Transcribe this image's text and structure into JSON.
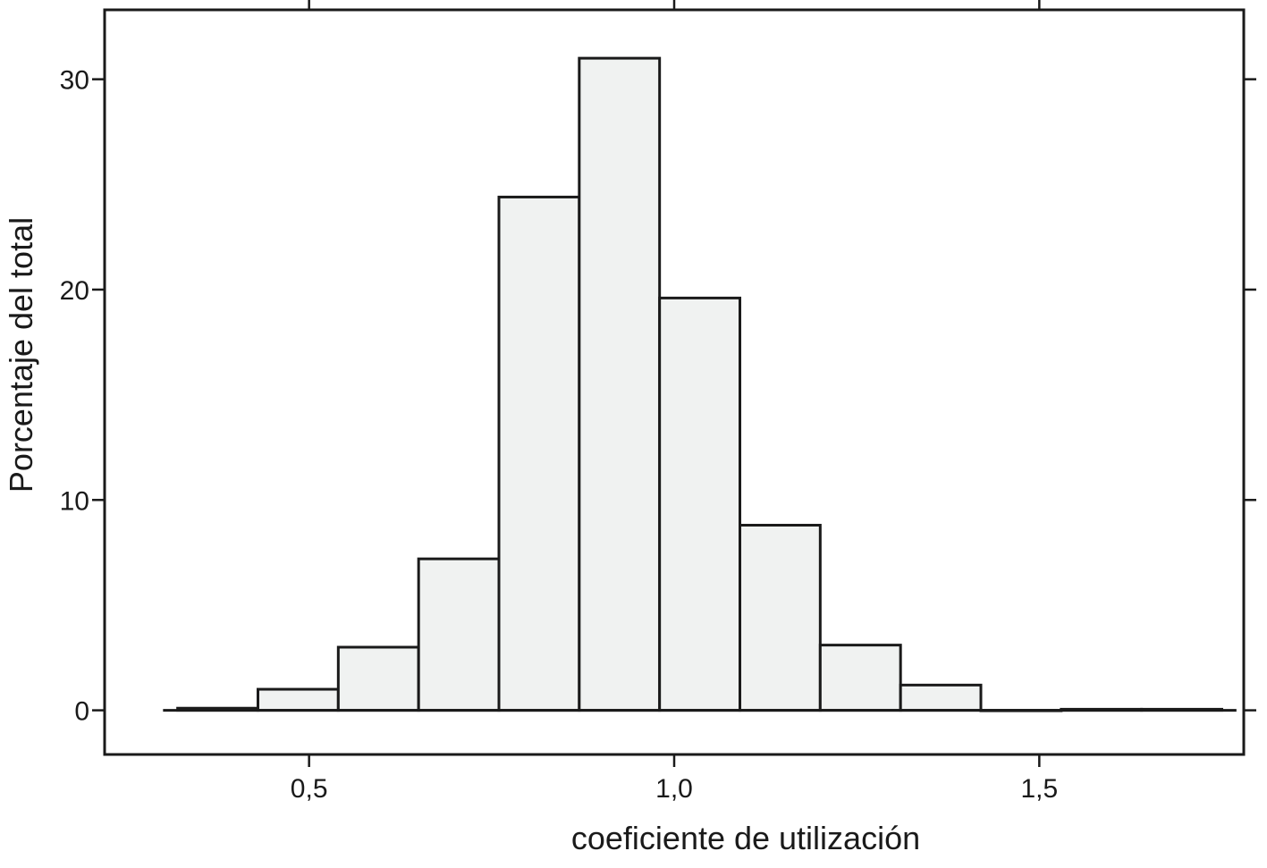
{
  "chart_data": {
    "type": "bar",
    "subtype": "histogram",
    "title": "",
    "xlabel": "coeficiente de utilización",
    "ylabel": "Porcentaje del total",
    "xlim": [
      0.22,
      1.78
    ],
    "ylim": [
      -2.1,
      33.3
    ],
    "bar_color": "#f0f2f1",
    "edge_color": "#1a1a1a",
    "x_ticks": [
      {
        "value": 0.5,
        "label": "0,5"
      },
      {
        "value": 1.0,
        "label": "1,0"
      },
      {
        "value": 1.5,
        "label": "1,5"
      }
    ],
    "y_ticks": [
      {
        "value": 0,
        "label": "0"
      },
      {
        "value": 10,
        "label": "10"
      },
      {
        "value": 20,
        "label": "20"
      },
      {
        "value": 30,
        "label": "30"
      }
    ],
    "bins": [
      {
        "x0": 0.32,
        "x1": 0.43,
        "value": 0.1
      },
      {
        "x0": 0.43,
        "x1": 0.54,
        "value": 1.0
      },
      {
        "x0": 0.54,
        "x1": 0.65,
        "value": 3.0
      },
      {
        "x0": 0.65,
        "x1": 0.76,
        "value": 7.2
      },
      {
        "x0": 0.76,
        "x1": 0.87,
        "value": 24.4
      },
      {
        "x0": 0.87,
        "x1": 0.98,
        "value": 31.0
      },
      {
        "x0": 0.98,
        "x1": 1.09,
        "value": 19.6
      },
      {
        "x0": 1.09,
        "x1": 1.2,
        "value": 8.8
      },
      {
        "x0": 1.2,
        "x1": 1.31,
        "value": 3.1
      },
      {
        "x0": 1.31,
        "x1": 1.42,
        "value": 1.2
      },
      {
        "x0": 1.42,
        "x1": 1.53,
        "value": 0.0
      },
      {
        "x0": 1.53,
        "x1": 1.64,
        "value": 0.05
      },
      {
        "x0": 1.64,
        "x1": 1.75,
        "value": 0.05
      }
    ],
    "baseline_range": [
      0.3,
      1.77
    ],
    "grid": false,
    "legend": "none"
  }
}
